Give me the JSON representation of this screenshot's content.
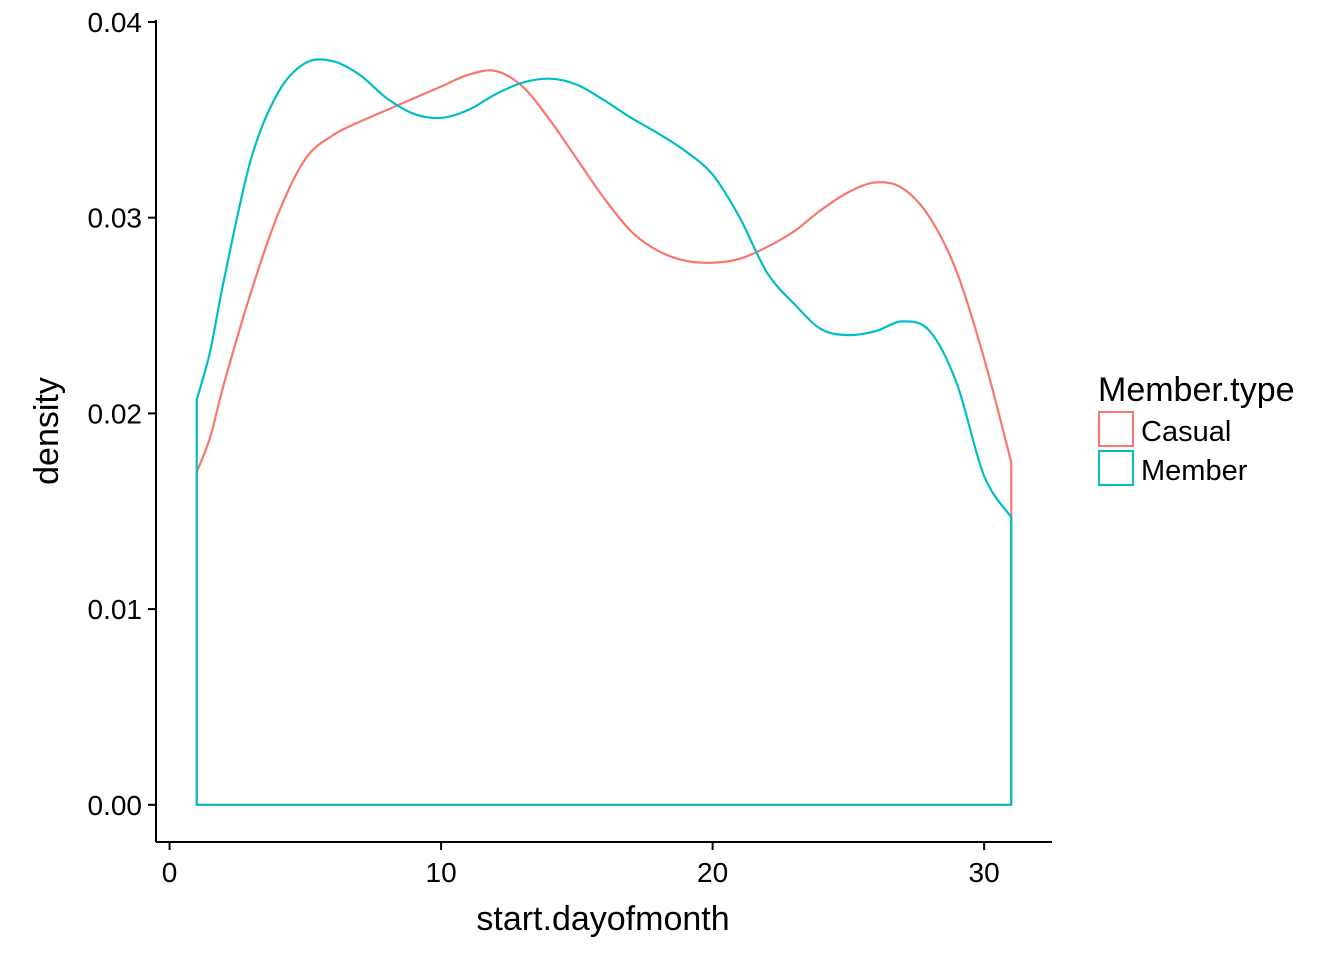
{
  "chart_data": {
    "type": "line",
    "subtype": "density",
    "title": "",
    "xlabel": "start.dayofmonth",
    "ylabel": "density",
    "xlim": [
      -0.5,
      32.5
    ],
    "ylim": [
      -0.0019,
      0.0401
    ],
    "x_ticks": [
      0,
      10,
      20,
      30
    ],
    "x_tick_labels": [
      "0",
      "10",
      "20",
      "30"
    ],
    "y_ticks": [
      0,
      0.01,
      0.02,
      0.03,
      0.04
    ],
    "y_tick_labels": [
      "0.00",
      "0.01",
      "0.02",
      "0.03",
      "0.04"
    ],
    "grid": false,
    "legend": {
      "title": "Member.type",
      "placement": "right",
      "entries": [
        {
          "label": "Casual",
          "color": "#F8766D"
        },
        {
          "label": "Member",
          "color": "#00BFC4"
        }
      ]
    },
    "series": [
      {
        "name": "Casual",
        "color": "#F8766D",
        "x": [
          1,
          1.5,
          2,
          3,
          4,
          5,
          6,
          7,
          8,
          9,
          10,
          11,
          12,
          13,
          14,
          15,
          16,
          17,
          18,
          19,
          20,
          21,
          22,
          23,
          24,
          25,
          26,
          27,
          28,
          29,
          30,
          31
        ],
        "y": [
          0.017,
          0.0188,
          0.0215,
          0.0262,
          0.0302,
          0.033,
          0.0342,
          0.0349,
          0.0355,
          0.0361,
          0.0367,
          0.0373,
          0.0375,
          0.0367,
          0.035,
          0.033,
          0.031,
          0.0293,
          0.0283,
          0.0278,
          0.0277,
          0.0279,
          0.0285,
          0.0293,
          0.0304,
          0.0313,
          0.0318,
          0.0315,
          0.03,
          0.0272,
          0.0228,
          0.0175
        ]
      },
      {
        "name": "Member",
        "color": "#00BFC4",
        "x": [
          1,
          1.5,
          2,
          3,
          4,
          5,
          6,
          7,
          8,
          9,
          10,
          11,
          12,
          13,
          14,
          15,
          16,
          17,
          18,
          19,
          20,
          21,
          22,
          23,
          24,
          25,
          26,
          27,
          28,
          29,
          30,
          31
        ],
        "y": [
          0.0207,
          0.0232,
          0.0268,
          0.033,
          0.0364,
          0.0379,
          0.038,
          0.0373,
          0.0361,
          0.0353,
          0.0351,
          0.0355,
          0.0363,
          0.0369,
          0.0371,
          0.0368,
          0.036,
          0.0351,
          0.0343,
          0.0334,
          0.0322,
          0.03,
          0.0272,
          0.0256,
          0.0243,
          0.024,
          0.0242,
          0.0247,
          0.0242,
          0.0215,
          0.0168,
          0.0147
        ]
      }
    ]
  }
}
